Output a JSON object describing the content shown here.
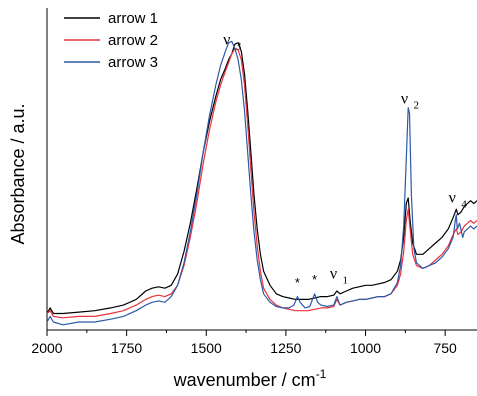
{
  "chart_data": {
    "type": "line",
    "xlabel": "wavenumber / cm",
    "xlabel_sup": "-1",
    "ylabel": "Absorbance / a.u.",
    "xlim": [
      2000,
      650
    ],
    "x_reversed": true,
    "ylim": [
      0,
      1
    ],
    "y_tick_labels_shown": false,
    "x_ticks": [
      2000,
      1750,
      1500,
      1250,
      1000,
      750
    ],
    "x_tick_labels": [
      "2000",
      "1750",
      "1500",
      "1250",
      "1000",
      "750"
    ],
    "grid": false,
    "legend_position": "top-left",
    "annotations": [
      {
        "main": "ν",
        "sub": "3",
        "x": 1420,
        "y": 0.97
      },
      {
        "main": "ν",
        "sub": "2",
        "x": 862,
        "y": 0.76
      },
      {
        "main": "ν",
        "sub": "4",
        "x": 712,
        "y": 0.41
      },
      {
        "main": "ν",
        "sub": "1",
        "x": 1085,
        "y": 0.14
      },
      {
        "main": "*",
        "sub": "",
        "x": 1214,
        "y": 0.11
      },
      {
        "main": "*",
        "sub": "",
        "x": 1160,
        "y": 0.12
      }
    ],
    "series": [
      {
        "name": "arrow 1",
        "color": "#000000",
        "points": [
          [
            2000,
            0.03
          ],
          [
            1990,
            0.05
          ],
          [
            1980,
            0.03
          ],
          [
            1950,
            0.03
          ],
          [
            1900,
            0.035
          ],
          [
            1850,
            0.04
          ],
          [
            1800,
            0.05
          ],
          [
            1760,
            0.06
          ],
          [
            1720,
            0.08
          ],
          [
            1690,
            0.11
          ],
          [
            1670,
            0.12
          ],
          [
            1650,
            0.125
          ],
          [
            1630,
            0.12
          ],
          [
            1610,
            0.13
          ],
          [
            1590,
            0.17
          ],
          [
            1570,
            0.25
          ],
          [
            1550,
            0.35
          ],
          [
            1530,
            0.47
          ],
          [
            1510,
            0.6
          ],
          [
            1490,
            0.71
          ],
          [
            1470,
            0.8
          ],
          [
            1455,
            0.86
          ],
          [
            1440,
            0.9
          ],
          [
            1430,
            0.93
          ],
          [
            1420,
            0.95
          ],
          [
            1410,
            0.985
          ],
          [
            1400,
            0.99
          ],
          [
            1390,
            0.96
          ],
          [
            1380,
            0.88
          ],
          [
            1370,
            0.75
          ],
          [
            1360,
            0.6
          ],
          [
            1350,
            0.45
          ],
          [
            1340,
            0.33
          ],
          [
            1330,
            0.24
          ],
          [
            1320,
            0.18
          ],
          [
            1300,
            0.13
          ],
          [
            1280,
            0.1
          ],
          [
            1260,
            0.09
          ],
          [
            1240,
            0.085
          ],
          [
            1220,
            0.08
          ],
          [
            1200,
            0.08
          ],
          [
            1180,
            0.08
          ],
          [
            1160,
            0.085
          ],
          [
            1140,
            0.09
          ],
          [
            1120,
            0.09
          ],
          [
            1100,
            0.095
          ],
          [
            1090,
            0.11
          ],
          [
            1080,
            0.1
          ],
          [
            1060,
            0.11
          ],
          [
            1040,
            0.12
          ],
          [
            1020,
            0.125
          ],
          [
            1000,
            0.13
          ],
          [
            980,
            0.13
          ],
          [
            960,
            0.135
          ],
          [
            940,
            0.14
          ],
          [
            920,
            0.15
          ],
          [
            900,
            0.18
          ],
          [
            890,
            0.22
          ],
          [
            880,
            0.3
          ],
          [
            872,
            0.42
          ],
          [
            866,
            0.44
          ],
          [
            860,
            0.36
          ],
          [
            852,
            0.28
          ],
          [
            840,
            0.24
          ],
          [
            820,
            0.24
          ],
          [
            800,
            0.26
          ],
          [
            780,
            0.28
          ],
          [
            760,
            0.3
          ],
          [
            740,
            0.33
          ],
          [
            725,
            0.37
          ],
          [
            715,
            0.4
          ],
          [
            710,
            0.38
          ],
          [
            700,
            0.39
          ],
          [
            690,
            0.41
          ],
          [
            680,
            0.42
          ],
          [
            670,
            0.43
          ],
          [
            660,
            0.42
          ],
          [
            650,
            0.43
          ]
        ]
      },
      {
        "name": "arrow 2",
        "color": "#e8323c",
        "points": [
          [
            2000,
            0.03
          ],
          [
            1990,
            0.04
          ],
          [
            1980,
            0.02
          ],
          [
            1950,
            0.015
          ],
          [
            1900,
            0.02
          ],
          [
            1850,
            0.02
          ],
          [
            1800,
            0.03
          ],
          [
            1760,
            0.04
          ],
          [
            1720,
            0.06
          ],
          [
            1690,
            0.08
          ],
          [
            1670,
            0.09
          ],
          [
            1650,
            0.095
          ],
          [
            1630,
            0.09
          ],
          [
            1610,
            0.1
          ],
          [
            1590,
            0.13
          ],
          [
            1570,
            0.2
          ],
          [
            1550,
            0.3
          ],
          [
            1530,
            0.42
          ],
          [
            1510,
            0.56
          ],
          [
            1490,
            0.68
          ],
          [
            1470,
            0.78
          ],
          [
            1455,
            0.84
          ],
          [
            1440,
            0.89
          ],
          [
            1430,
            0.92
          ],
          [
            1420,
            0.95
          ],
          [
            1410,
            0.97
          ],
          [
            1400,
            0.965
          ],
          [
            1390,
            0.93
          ],
          [
            1380,
            0.84
          ],
          [
            1370,
            0.7
          ],
          [
            1360,
            0.54
          ],
          [
            1350,
            0.39
          ],
          [
            1340,
            0.27
          ],
          [
            1330,
            0.18
          ],
          [
            1320,
            0.12
          ],
          [
            1300,
            0.08
          ],
          [
            1280,
            0.06
          ],
          [
            1260,
            0.05
          ],
          [
            1240,
            0.045
          ],
          [
            1220,
            0.04
          ],
          [
            1200,
            0.04
          ],
          [
            1180,
            0.04
          ],
          [
            1160,
            0.045
          ],
          [
            1140,
            0.05
          ],
          [
            1120,
            0.05
          ],
          [
            1100,
            0.055
          ],
          [
            1090,
            0.08
          ],
          [
            1080,
            0.06
          ],
          [
            1060,
            0.07
          ],
          [
            1040,
            0.075
          ],
          [
            1020,
            0.08
          ],
          [
            1000,
            0.08
          ],
          [
            980,
            0.085
          ],
          [
            960,
            0.09
          ],
          [
            940,
            0.09
          ],
          [
            920,
            0.1
          ],
          [
            900,
            0.13
          ],
          [
            890,
            0.17
          ],
          [
            880,
            0.25
          ],
          [
            872,
            0.36
          ],
          [
            866,
            0.4
          ],
          [
            860,
            0.33
          ],
          [
            852,
            0.24
          ],
          [
            840,
            0.2
          ],
          [
            820,
            0.19
          ],
          [
            800,
            0.2
          ],
          [
            780,
            0.22
          ],
          [
            760,
            0.24
          ],
          [
            740,
            0.27
          ],
          [
            725,
            0.31
          ],
          [
            715,
            0.33
          ],
          [
            710,
            0.31
          ],
          [
            700,
            0.32
          ],
          [
            690,
            0.34
          ],
          [
            680,
            0.35
          ],
          [
            670,
            0.36
          ],
          [
            660,
            0.35
          ],
          [
            650,
            0.36
          ]
        ]
      },
      {
        "name": "arrow 3",
        "color": "#2b5aa8",
        "points": [
          [
            2000,
            0.0
          ],
          [
            1990,
            0.02
          ],
          [
            1980,
            0.0
          ],
          [
            1950,
            -0.01
          ],
          [
            1900,
            0.0
          ],
          [
            1850,
            0.0
          ],
          [
            1800,
            0.01
          ],
          [
            1760,
            0.02
          ],
          [
            1720,
            0.04
          ],
          [
            1690,
            0.06
          ],
          [
            1670,
            0.07
          ],
          [
            1650,
            0.075
          ],
          [
            1630,
            0.07
          ],
          [
            1610,
            0.09
          ],
          [
            1590,
            0.13
          ],
          [
            1570,
            0.21
          ],
          [
            1550,
            0.32
          ],
          [
            1530,
            0.45
          ],
          [
            1510,
            0.6
          ],
          [
            1490,
            0.73
          ],
          [
            1470,
            0.84
          ],
          [
            1455,
            0.91
          ],
          [
            1440,
            0.96
          ],
          [
            1430,
            0.99
          ],
          [
            1420,
            0.995
          ],
          [
            1410,
            0.97
          ],
          [
            1400,
            0.93
          ],
          [
            1390,
            0.86
          ],
          [
            1380,
            0.75
          ],
          [
            1370,
            0.6
          ],
          [
            1360,
            0.45
          ],
          [
            1350,
            0.32
          ],
          [
            1340,
            0.22
          ],
          [
            1330,
            0.15
          ],
          [
            1320,
            0.1
          ],
          [
            1300,
            0.07
          ],
          [
            1280,
            0.055
          ],
          [
            1260,
            0.05
          ],
          [
            1240,
            0.05
          ],
          [
            1225,
            0.06
          ],
          [
            1214,
            0.09
          ],
          [
            1205,
            0.07
          ],
          [
            1190,
            0.05
          ],
          [
            1175,
            0.055
          ],
          [
            1160,
            0.1
          ],
          [
            1150,
            0.07
          ],
          [
            1140,
            0.06
          ],
          [
            1120,
            0.055
          ],
          [
            1100,
            0.06
          ],
          [
            1090,
            0.09
          ],
          [
            1080,
            0.06
          ],
          [
            1060,
            0.07
          ],
          [
            1040,
            0.075
          ],
          [
            1020,
            0.08
          ],
          [
            1000,
            0.08
          ],
          [
            980,
            0.085
          ],
          [
            960,
            0.09
          ],
          [
            940,
            0.09
          ],
          [
            920,
            0.1
          ],
          [
            900,
            0.14
          ],
          [
            890,
            0.2
          ],
          [
            880,
            0.34
          ],
          [
            872,
            0.58
          ],
          [
            866,
            0.76
          ],
          [
            862,
            0.74
          ],
          [
            856,
            0.45
          ],
          [
            848,
            0.26
          ],
          [
            840,
            0.21
          ],
          [
            820,
            0.19
          ],
          [
            800,
            0.2
          ],
          [
            780,
            0.21
          ],
          [
            760,
            0.23
          ],
          [
            740,
            0.26
          ],
          [
            725,
            0.3
          ],
          [
            718,
            0.36
          ],
          [
            715,
            0.38
          ],
          [
            712,
            0.33
          ],
          [
            705,
            0.35
          ],
          [
            695,
            0.3
          ],
          [
            690,
            0.32
          ],
          [
            680,
            0.33
          ],
          [
            670,
            0.34
          ],
          [
            660,
            0.33
          ],
          [
            650,
            0.34
          ]
        ]
      }
    ]
  }
}
